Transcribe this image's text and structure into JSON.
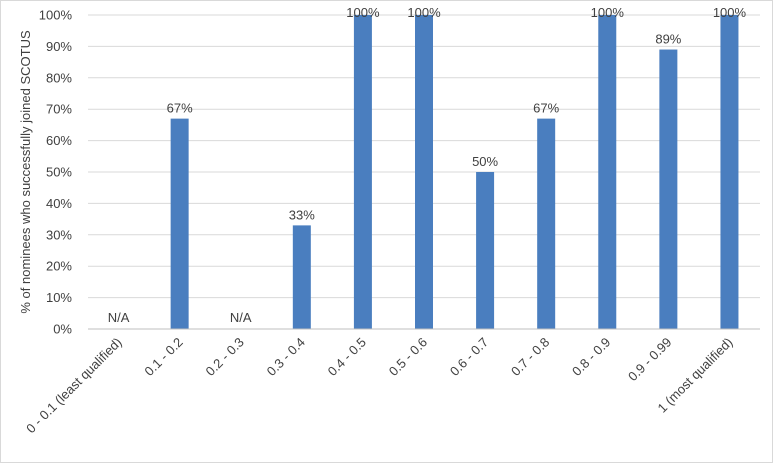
{
  "chart_data": {
    "type": "bar",
    "title": "",
    "xlabel": "",
    "ylabel": "% of nominees who successfully joined SCOTUS",
    "ylim": [
      0,
      100
    ],
    "y_ticks": [
      "0%",
      "10%",
      "20%",
      "30%",
      "40%",
      "50%",
      "60%",
      "70%",
      "80%",
      "90%",
      "100%"
    ],
    "categories": [
      "0 - 0.1 (least qualified)",
      "0.1 - 0.2",
      "0.2 - 0.3",
      "0.3 - 0.4",
      "0.4 - 0.5",
      "0.5 - 0.6",
      "0.6 - 0.7",
      "0.7 - 0.8",
      "0.8 - 0.9",
      "0.9 - 0.99",
      "1 (most qualified)"
    ],
    "values": [
      null,
      67,
      null,
      33,
      100,
      100,
      50,
      67,
      100,
      89,
      100
    ],
    "data_labels": [
      "N/A",
      "67%",
      "N/A",
      "33%",
      "100%",
      "100%",
      "50%",
      "67%",
      "100%",
      "89%",
      "100%"
    ],
    "bar_color": "#4a7ebf",
    "grid": true,
    "legend": "none"
  }
}
